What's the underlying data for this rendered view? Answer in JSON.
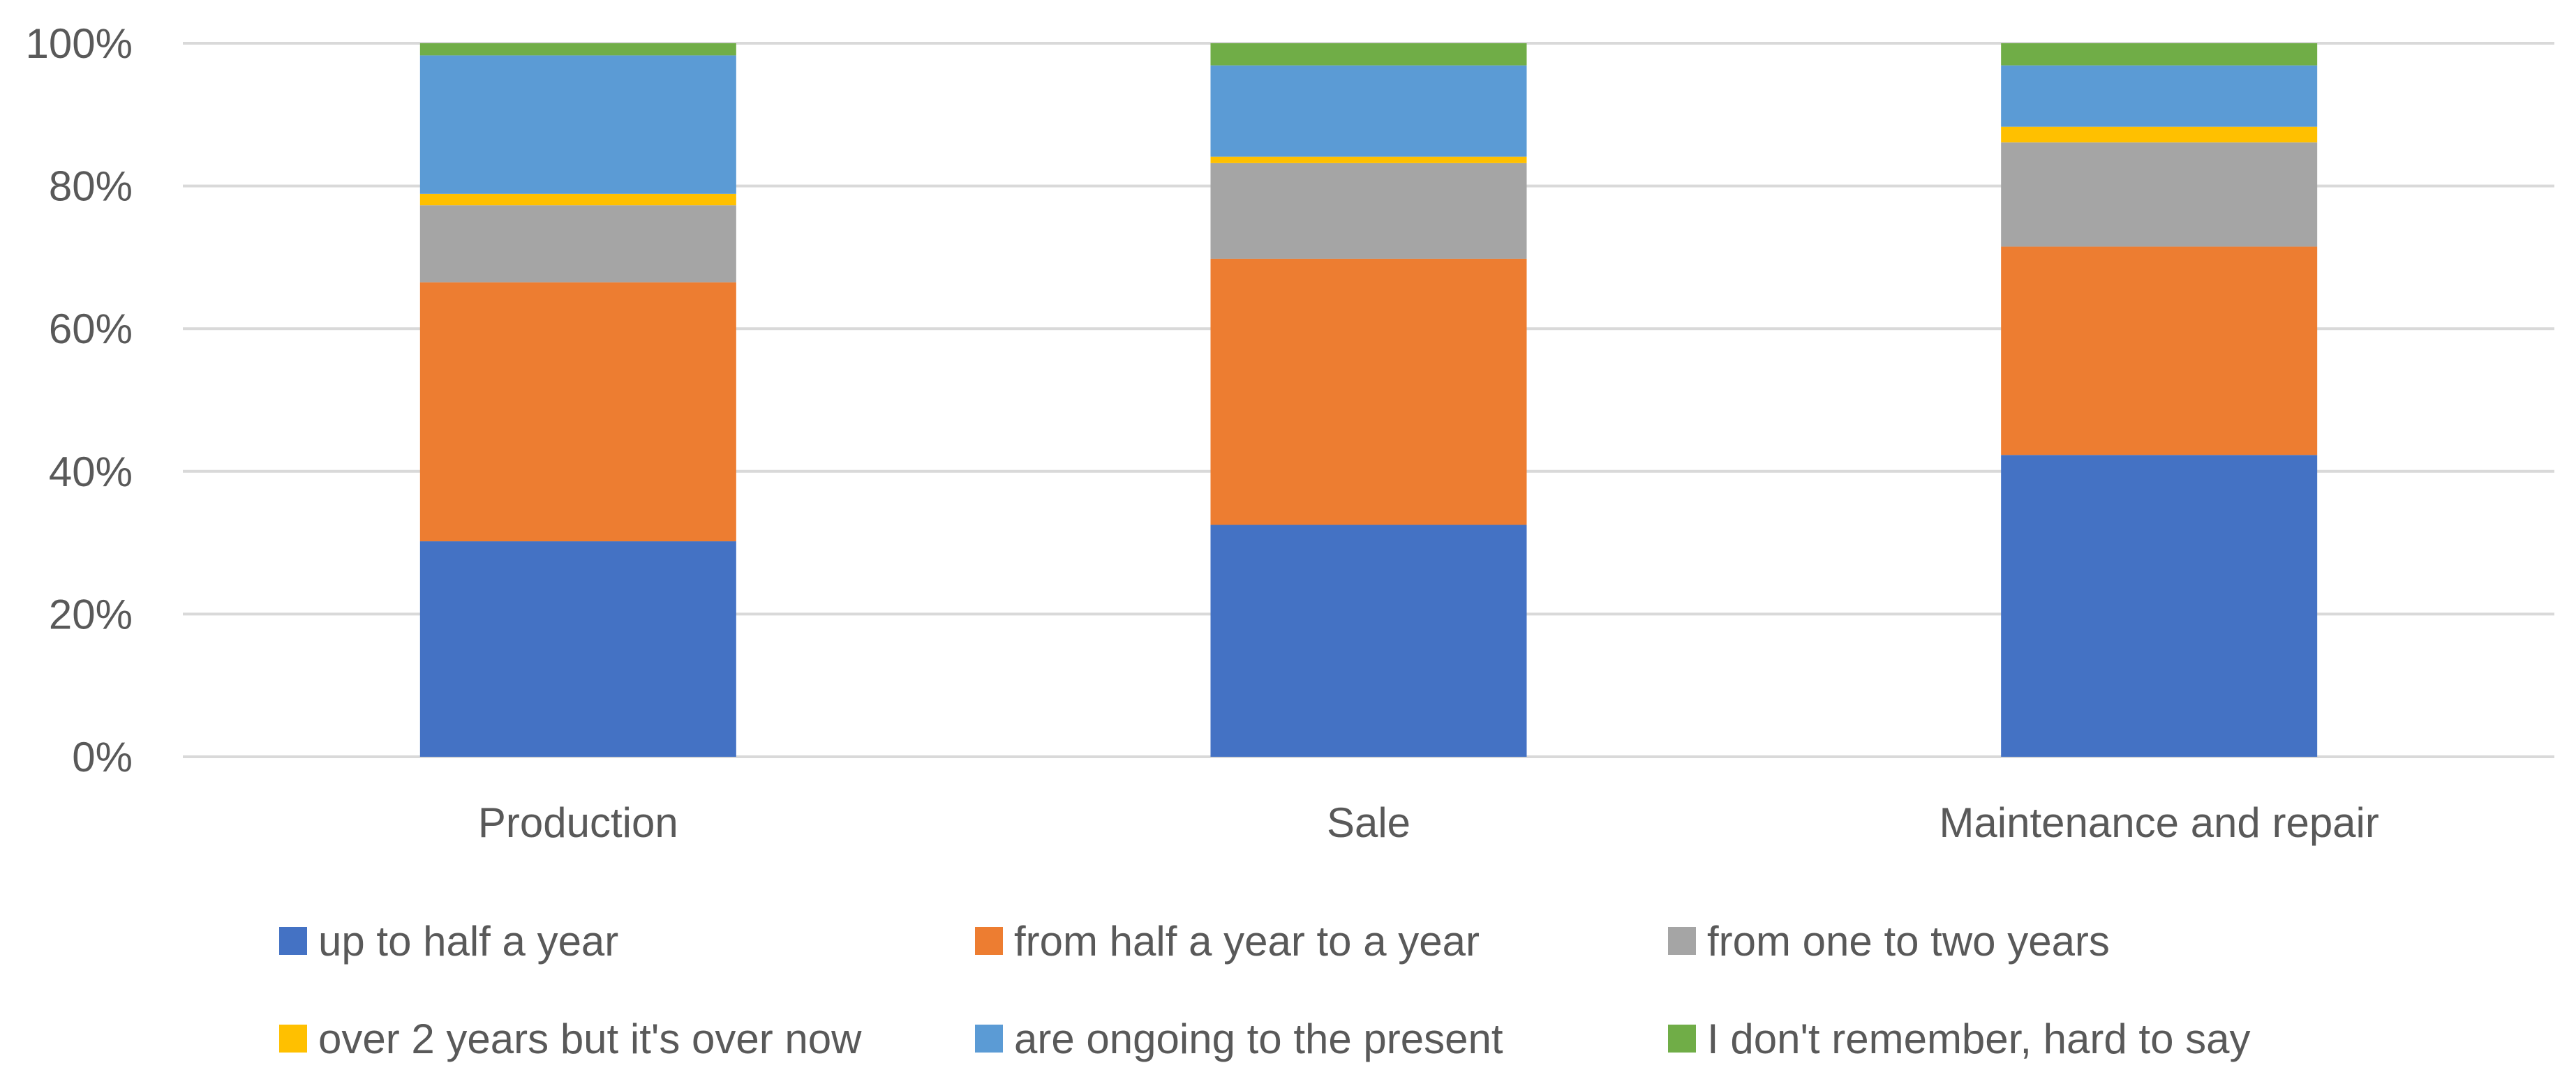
{
  "chart_data": {
    "type": "bar",
    "stacked": true,
    "percent_stacked": true,
    "categories": [
      "Production",
      "Sale",
      "Maintenance and repair"
    ],
    "series": [
      {
        "name": "up to half a year",
        "color": "#4472C4",
        "values": [
          30.2,
          32.5,
          42.3
        ]
      },
      {
        "name": "from half a year to a year",
        "color": "#ED7D31",
        "values": [
          36.3,
          37.3,
          29.2
        ]
      },
      {
        "name": "from one to two years",
        "color": "#A5A5A5",
        "values": [
          10.8,
          13.4,
          14.6
        ]
      },
      {
        "name": "over 2 years but it's over now",
        "color": "#FFC000",
        "values": [
          1.6,
          0.9,
          2.2
        ]
      },
      {
        "name": "are ongoing to the present",
        "color": "#5B9BD5",
        "values": [
          19.4,
          12.8,
          8.6
        ]
      },
      {
        "name": "I don't remember, hard to say",
        "color": "#70AD47",
        "values": [
          1.7,
          3.1,
          3.1
        ]
      }
    ],
    "yticks": [
      "0%",
      "20%",
      "40%",
      "60%",
      "80%",
      "100%"
    ],
    "ylim": [
      0,
      100
    ],
    "grid": true,
    "legend_position": "bottom",
    "title": "",
    "xlabel": "",
    "ylabel": ""
  }
}
